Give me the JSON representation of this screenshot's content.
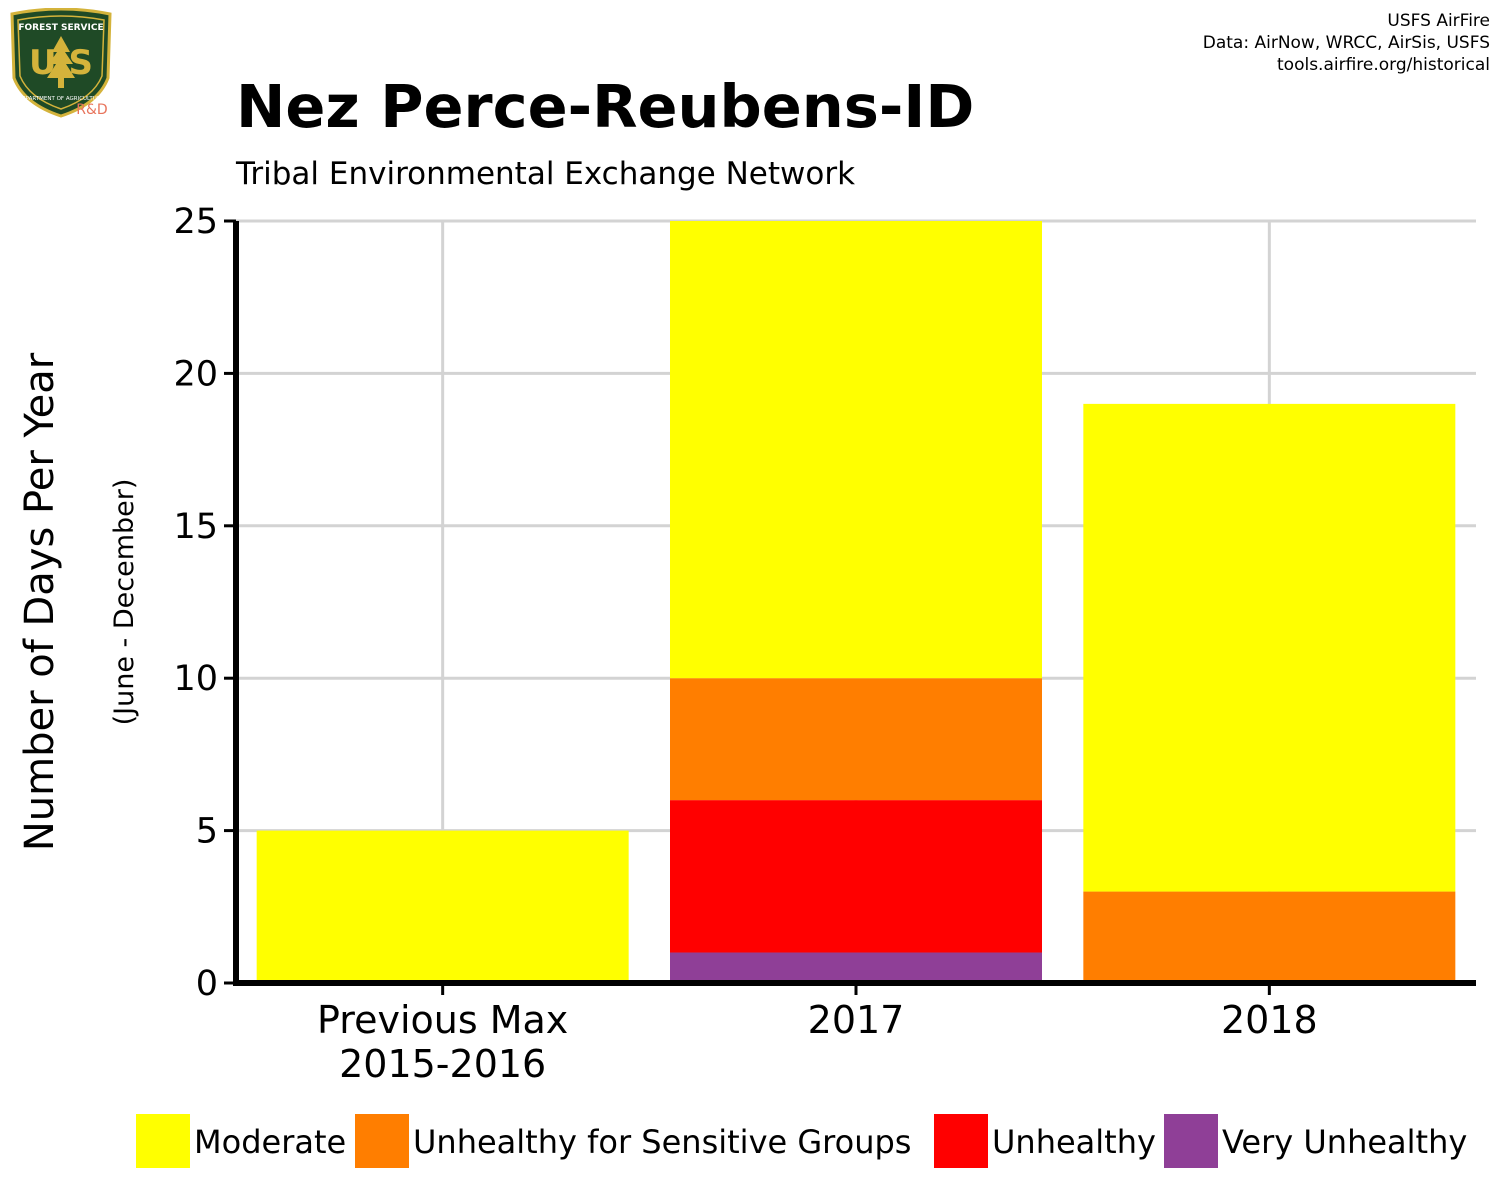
{
  "header": {
    "title": "Nez Perce-Reubens-ID",
    "subtitle": "Tribal Environmental Exchange Network",
    "credits": [
      "USFS AirFire",
      "Data: AirNow, WRCC, AirSis, USFS",
      "tools.airfire.org/historical"
    ]
  },
  "logo": {
    "top_text": "FOREST SERVICE",
    "letters": "U S",
    "bottom_text": "DEPARTMENT OF AGRICULTURE",
    "rd": "R&D"
  },
  "colors": {
    "moderate": "#FFFF00",
    "usg": "#FF7E00",
    "unhealthy": "#FF0000",
    "very_unhealthy": "#8F3F97",
    "grid": "#D3D3D3",
    "axis": "#000000"
  },
  "chart_data": {
    "type": "bar",
    "stacked": true,
    "title": "Nez Perce-Reubens-ID",
    "subtitle": "Tribal Environmental Exchange Network",
    "ylabel": "Number of Days Per Year",
    "ylabel_sub": "(June - December)",
    "xlabel": "",
    "categories": [
      [
        "Previous Max",
        "2015-2016"
      ],
      [
        "2017"
      ],
      [
        "2018"
      ]
    ],
    "ylim": [
      0,
      25
    ],
    "yticks": [
      0,
      5,
      10,
      15,
      20,
      25
    ],
    "grid": true,
    "legend_position": "bottom",
    "series": [
      {
        "name": "Very Unhealthy",
        "color_key": "very_unhealthy",
        "values": [
          0,
          1,
          0
        ]
      },
      {
        "name": "Unhealthy",
        "color_key": "unhealthy",
        "values": [
          0,
          5,
          0
        ]
      },
      {
        "name": "Unhealthy for Sensitive Groups",
        "color_key": "usg",
        "values": [
          0,
          4,
          3
        ]
      },
      {
        "name": "Moderate",
        "color_key": "moderate",
        "values": [
          5,
          15,
          16
        ]
      }
    ],
    "legend_order": [
      "Moderate",
      "Unhealthy for Sensitive Groups",
      "Unhealthy",
      "Very Unhealthy"
    ]
  }
}
